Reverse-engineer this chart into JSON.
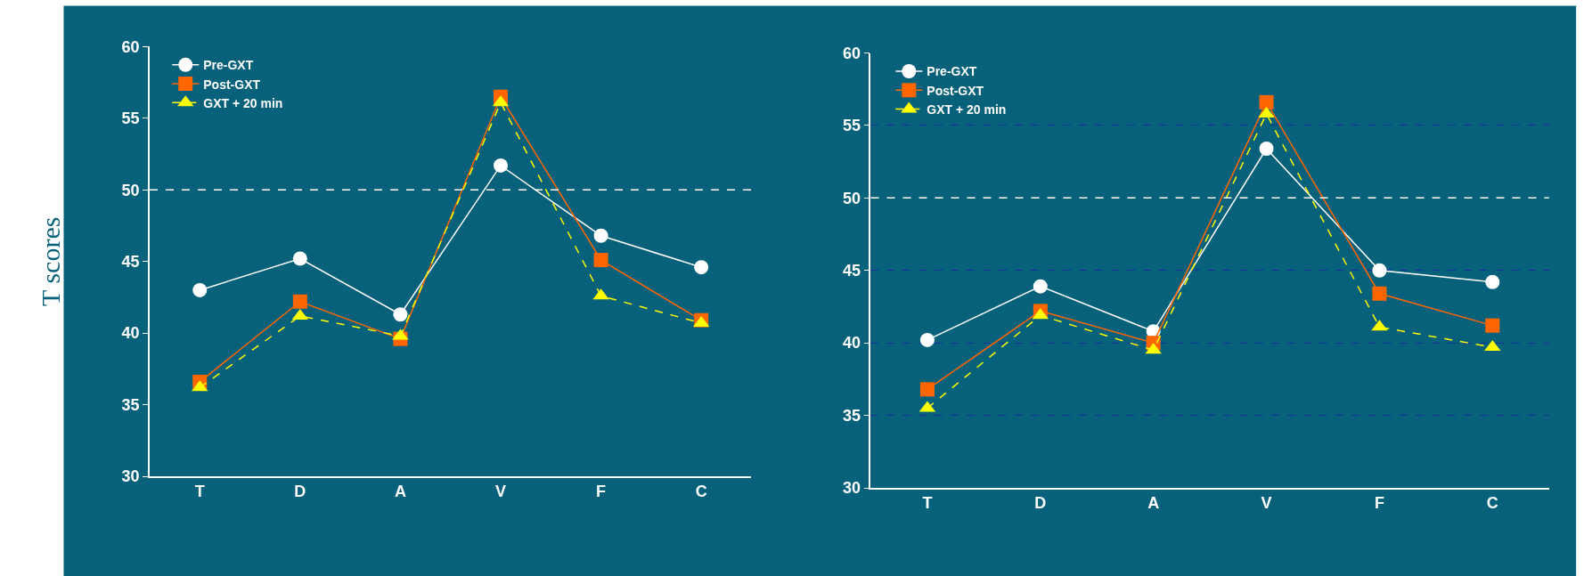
{
  "chart_data": [
    {
      "type": "line",
      "ylabel": "T scores",
      "categories": [
        "T",
        "D",
        "A",
        "V",
        "F",
        "C"
      ],
      "ylim": [
        30,
        60
      ],
      "yticks": [
        30,
        35,
        40,
        45,
        50,
        55,
        60
      ],
      "grid": false,
      "legend": "top left",
      "ref_lines": [
        {
          "axis": "y",
          "value": 50,
          "color": "#ffffff",
          "line_style": "dashed"
        }
      ],
      "series": [
        {
          "name": "Pre-GXT",
          "color": "#ffffff",
          "marker": "circle",
          "line_style": "solid",
          "values": [
            43.0,
            45.2,
            41.3,
            51.7,
            46.8,
            44.6
          ]
        },
        {
          "name": "Post-GXT",
          "color": "#ff6600",
          "marker": "square",
          "line_style": "solid",
          "values": [
            36.6,
            42.2,
            39.6,
            56.5,
            45.1,
            40.9
          ]
        },
        {
          "name": "GXT + 20 min",
          "color": "#ffff00",
          "marker": "triangle",
          "line_style": "dashed",
          "values": [
            36.2,
            41.2,
            39.8,
            56.1,
            42.6,
            40.7
          ]
        }
      ]
    },
    {
      "type": "line",
      "categories": [
        "T",
        "D",
        "A",
        "V",
        "F",
        "C"
      ],
      "ylim": [
        30,
        60
      ],
      "yticks": [
        30,
        35,
        40,
        45,
        50,
        55,
        60
      ],
      "grid": "y",
      "legend": "top left",
      "ref_lines": [
        {
          "axis": "y",
          "value": 50,
          "color": "#ffffff",
          "line_style": "dashed"
        }
      ],
      "series": [
        {
          "name": "Pre-GXT",
          "color": "#ffffff",
          "marker": "circle",
          "line_style": "solid",
          "values": [
            40.2,
            43.9,
            40.8,
            53.4,
            45.0,
            44.2
          ]
        },
        {
          "name": "Post-GXT",
          "color": "#ff6600",
          "marker": "square",
          "line_style": "solid",
          "values": [
            36.8,
            42.2,
            40.0,
            56.6,
            43.4,
            41.2
          ]
        },
        {
          "name": "GXT + 20 min",
          "color": "#ffff00",
          "marker": "triangle",
          "line_style": "dashed",
          "values": [
            35.5,
            41.9,
            39.5,
            55.8,
            41.1,
            39.7
          ]
        }
      ]
    }
  ]
}
